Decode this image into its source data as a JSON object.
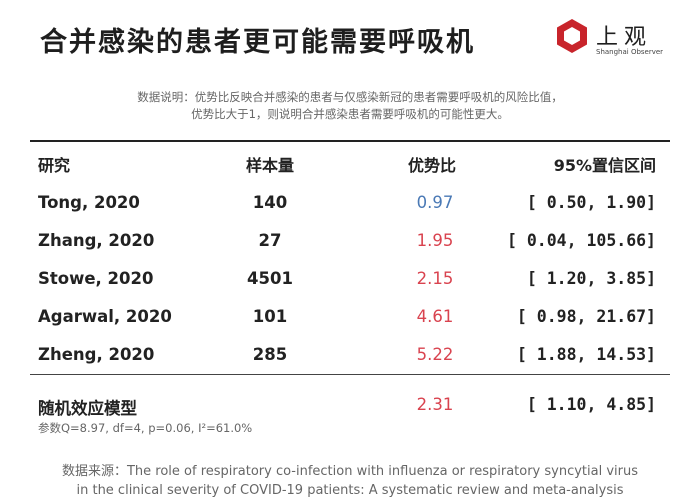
{
  "title": "合并感染的患者更可能需要呼吸机",
  "logo": {
    "cn": "上观",
    "en": "Shanghai Observer",
    "color": "#c8242b"
  },
  "note": {
    "line1": "数据说明：优势比反映合并感染的患者与仅感染新冠的患者需要呼吸机的风险比值，",
    "line2": "优势比大于1，则说明合并感染患者需要呼吸机的可能性更大。"
  },
  "colors": {
    "below_one": "#4a79b5",
    "above_one": "#d9434f"
  },
  "chart_data": {
    "type": "table",
    "columns": [
      "研究",
      "样本量",
      "优势比",
      "95%置信区间"
    ],
    "rows": [
      {
        "study": "Tong, 2020",
        "n": "140",
        "or": 0.97,
        "or_text": "0.97",
        "ci_low": "0.50",
        "ci_high": "1.90"
      },
      {
        "study": "Zhang, 2020",
        "n": "27",
        "or": 1.95,
        "or_text": "1.95",
        "ci_low": "0.04",
        "ci_high": "105.66"
      },
      {
        "study": "Stowe, 2020",
        "n": "4501",
        "or": 2.15,
        "or_text": "2.15",
        "ci_low": "1.20",
        "ci_high": "3.85"
      },
      {
        "study": "Agarwal, 2020",
        "n": "101",
        "or": 4.61,
        "or_text": "4.61",
        "ci_low": "0.98",
        "ci_high": "21.67"
      },
      {
        "study": "Zheng, 2020",
        "n": "285",
        "or": 5.22,
        "or_text": "5.22",
        "ci_low": "1.88",
        "ci_high": "14.53"
      }
    ],
    "summary": {
      "label": "随机效应模型",
      "params": "参数Q=8.97, df=4, p=0.06, I²=61.0%",
      "or": 2.31,
      "or_text": "2.31",
      "ci_low": "1.10",
      "ci_high": "4.85"
    }
  },
  "source": {
    "line1": "数据来源：The role of respiratory co-infection with influenza or respiratory syncytial virus",
    "line2": "in the clinical severity of COVID-19 patients: A systematic review and meta-analysis"
  }
}
